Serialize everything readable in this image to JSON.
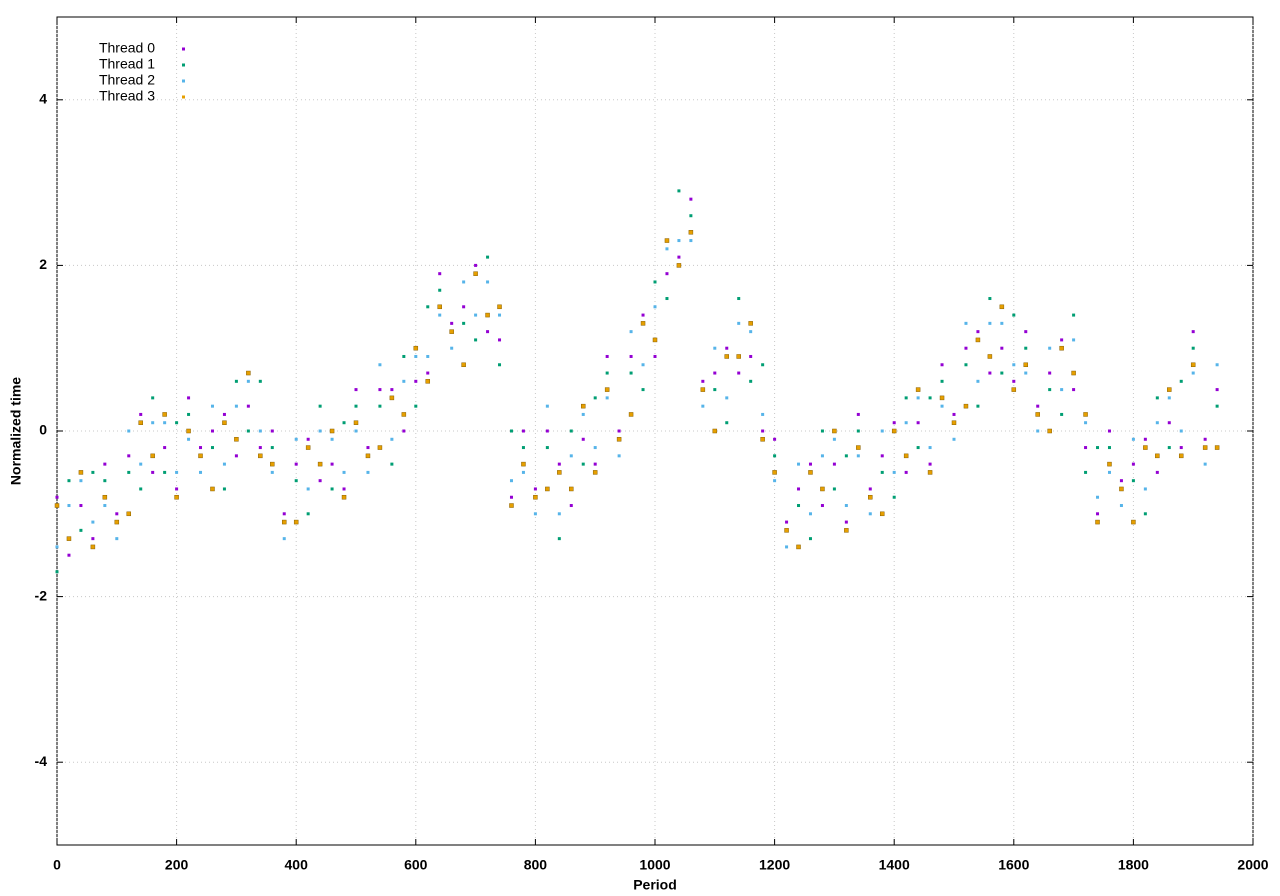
{
  "chart_data": {
    "type": "scatter",
    "xlabel": "Period",
    "ylabel": "Normalized time",
    "xlim": [
      0,
      2000
    ],
    "ylim": [
      -5,
      5
    ],
    "xticks": [
      0,
      200,
      400,
      600,
      800,
      1000,
      1200,
      1400,
      1600,
      1800,
      2000
    ],
    "yticks": [
      -4,
      -2,
      0,
      2,
      4
    ],
    "grid": true,
    "legend": "top-left",
    "x": [
      0,
      20,
      40,
      60,
      80,
      100,
      120,
      140,
      160,
      180,
      200,
      220,
      240,
      260,
      280,
      300,
      320,
      340,
      360,
      380,
      400,
      420,
      440,
      460,
      480,
      500,
      520,
      540,
      560,
      580,
      600,
      620,
      640,
      660,
      680,
      700,
      720,
      740,
      760,
      780,
      800,
      820,
      840,
      860,
      880,
      900,
      920,
      940,
      960,
      980,
      1000,
      1020,
      1040,
      1060,
      1080,
      1100,
      1120,
      1140,
      1160,
      1180,
      1200,
      1220,
      1240,
      1260,
      1280,
      1300,
      1320,
      1340,
      1360,
      1380,
      1400,
      1420,
      1440,
      1460,
      1480,
      1500,
      1520,
      1540,
      1560,
      1580,
      1600,
      1620,
      1640,
      1660,
      1680,
      1700,
      1720,
      1740,
      1760,
      1780,
      1800,
      1820,
      1840,
      1860,
      1880,
      1900,
      1920,
      1940
    ],
    "series": [
      {
        "name": "Thread 0",
        "color": "#9400d3",
        "values": [
          -0.8,
          -1.5,
          -0.9,
          -1.3,
          -0.4,
          -1.0,
          -0.3,
          0.2,
          -0.5,
          -0.2,
          -0.7,
          0.4,
          -0.2,
          0,
          0.2,
          -0.3,
          0.3,
          -0.2,
          0,
          -1.0,
          -0.4,
          -0.1,
          -0.6,
          -0.4,
          -0.7,
          0.5,
          -0.2,
          0.5,
          0.5,
          0,
          0.6,
          0.7,
          1.9,
          1.3,
          1.5,
          2.0,
          1.2,
          1.1,
          -0.8,
          0,
          -0.7,
          0,
          -0.4,
          -0.9,
          -0.1,
          -0.4,
          0.9,
          0,
          0.9,
          1.4,
          0.9,
          1.9,
          2.1,
          2.8,
          0.6,
          0.7,
          1.0,
          0.7,
          0.9,
          0,
          -0.1,
          -1.1,
          -0.7,
          -0.4,
          -0.9,
          -0.4,
          -1.1,
          0.2,
          -0.7,
          -0.3,
          0.1,
          -0.5,
          0.1,
          -0.4,
          0.8,
          0.2,
          1.0,
          1.2,
          0.7,
          1.0,
          0.6,
          1.2,
          0.3,
          0.7,
          1.1,
          0.5,
          -0.2,
          -1.0,
          0,
          -0.6,
          -0.4,
          -0.1,
          -0.5,
          0.1,
          -0.2,
          1.2,
          -0.1,
          0.5
        ]
      },
      {
        "name": "Thread 1",
        "color": "#009e73",
        "values": [
          -1.7,
          -0.6,
          -1.2,
          -0.5,
          -0.6,
          -1.1,
          -0.5,
          -0.7,
          0.4,
          -0.5,
          0.1,
          0.2,
          -0.3,
          -0.2,
          -0.7,
          0.6,
          0,
          0.6,
          -0.2,
          -1.1,
          -0.6,
          -1.0,
          0.3,
          -0.7,
          0.1,
          0.3,
          -0.3,
          0.3,
          -0.4,
          0.9,
          0.3,
          1.5,
          1.7,
          1.2,
          1.3,
          1.1,
          2.1,
          0.8,
          0,
          -0.2,
          -0.8,
          -0.2,
          -1.3,
          0,
          -0.4,
          0.4,
          0.7,
          -0.1,
          0.7,
          0.5,
          1.8,
          1.6,
          2.9,
          2.6,
          0.5,
          0.5,
          0.1,
          1.6,
          0.6,
          0.8,
          -0.3,
          -1.2,
          -0.9,
          -1.3,
          0,
          -0.7,
          -0.3,
          0,
          -0.8,
          -0.5,
          -0.8,
          0.4,
          -0.2,
          0.4,
          0.6,
          0.1,
          0.8,
          0.3,
          1.6,
          0.7,
          1.4,
          1.0,
          0.2,
          0.5,
          0.2,
          1.4,
          -0.5,
          -0.2,
          -0.2,
          -0.7,
          -0.6,
          -1.0,
          0.4,
          -0.2,
          0.6,
          1.0,
          -0.2,
          0.3
        ]
      },
      {
        "name": "Thread 2",
        "color": "#56b4e9",
        "values": [
          -1.4,
          -0.9,
          -0.6,
          -1.1,
          -0.9,
          -1.3,
          0,
          -0.4,
          0.1,
          0.1,
          -0.5,
          -0.1,
          -0.5,
          0.3,
          -0.4,
          0.3,
          0.6,
          0,
          -0.5,
          -1.3,
          -0.1,
          -0.7,
          0,
          -0.1,
          -0.5,
          0,
          -0.5,
          0.8,
          -0.1,
          0.6,
          0.9,
          0.9,
          1.4,
          1.0,
          1.8,
          1.4,
          1.8,
          1.4,
          -0.6,
          -0.5,
          -1.0,
          0.3,
          -1.0,
          -0.3,
          0.2,
          -0.2,
          0.4,
          -0.3,
          1.2,
          0.8,
          1.5,
          2.2,
          2.3,
          2.3,
          0.3,
          1.0,
          0.4,
          1.3,
          1.2,
          0.2,
          -0.6,
          -1.4,
          -0.4,
          -1.0,
          -0.3,
          -0.1,
          -0.9,
          -0.3,
          -1.0,
          0,
          -0.5,
          0.1,
          0.4,
          -0.2,
          0.3,
          -0.1,
          1.3,
          0.6,
          1.3,
          1.3,
          0.8,
          0.7,
          0,
          1.0,
          0.5,
          1.1,
          0.1,
          -0.8,
          -0.5,
          -0.9,
          -0.1,
          -0.7,
          0.1,
          0.4,
          0,
          0.7,
          -0.4,
          0.8
        ]
      },
      {
        "name": "Thread 3",
        "color": "#e69f00",
        "values": [
          -0.9,
          -1.3,
          -0.5,
          -1.4,
          -0.8,
          -1.1,
          -1.0,
          0.1,
          -0.3,
          0.2,
          -0.8,
          0,
          -0.3,
          -0.7,
          0.1,
          -0.1,
          0.7,
          -0.3,
          -0.4,
          -1.1,
          -1.1,
          -0.2,
          -0.4,
          0,
          -0.8,
          0.1,
          -0.3,
          -0.2,
          0.4,
          0.2,
          1.0,
          0.6,
          1.5,
          1.2,
          0.8,
          1.9,
          1.4,
          1.5,
          -0.9,
          -0.4,
          -0.8,
          -0.7,
          -0.5,
          -0.7,
          0.3,
          -0.5,
          0.5,
          -0.1,
          0.2,
          1.3,
          1.1,
          2.3,
          2.0,
          2.4,
          0.5,
          0,
          0.9,
          0.9,
          1.3,
          -0.1,
          -0.5,
          -1.2,
          -1.4,
          -0.5,
          -0.7,
          0,
          -1.2,
          -0.2,
          -0.8,
          -1.0,
          0,
          -0.3,
          0.5,
          -0.5,
          0.4,
          0.1,
          0.3,
          1.1,
          0.9,
          1.5,
          0.5,
          0.8,
          0.2,
          0,
          1.0,
          0.7,
          0.2,
          -1.1,
          -0.4,
          -0.7,
          -1.1,
          -0.2,
          -0.3,
          0.5,
          -0.3,
          0.8,
          -0.2,
          -0.2
        ]
      }
    ]
  }
}
